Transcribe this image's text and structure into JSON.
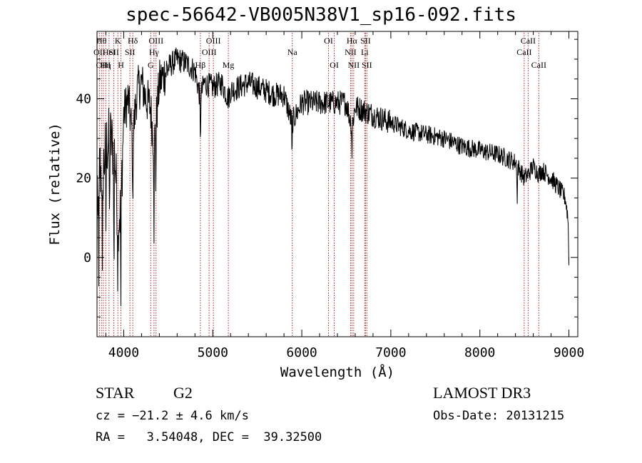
{
  "chart_data": {
    "type": "line",
    "title": "spec-56642-VB005N38V1_sp16-092.fits",
    "xlabel": "Wavelength (Å)",
    "ylabel": "Flux (relative)",
    "xlim": [
      3700,
      9100
    ],
    "ylim": [
      -20,
      57
    ],
    "x_ticks": [
      4000,
      5000,
      6000,
      7000,
      8000,
      9000
    ],
    "x_tick_labels": [
      "4000",
      "5000",
      "6000",
      "7000",
      "8000",
      "9000"
    ],
    "y_ticks": [
      0,
      20,
      40
    ],
    "y_tick_labels": [
      "0",
      "20",
      "40"
    ],
    "line_color": "#000000",
    "marker_color": "#b22222",
    "spectrum_anchors": [
      [
        3700,
        5
      ],
      [
        3720,
        24
      ],
      [
        3760,
        20
      ],
      [
        3800,
        28
      ],
      [
        3850,
        30
      ],
      [
        3900,
        26
      ],
      [
        3933,
        10
      ],
      [
        3968,
        12
      ],
      [
        4000,
        36
      ],
      [
        4050,
        40
      ],
      [
        4101,
        30
      ],
      [
        4150,
        42
      ],
      [
        4200,
        44
      ],
      [
        4250,
        40
      ],
      [
        4300,
        38
      ],
      [
        4340,
        28
      ],
      [
        4400,
        44
      ],
      [
        4500,
        48
      ],
      [
        4600,
        50
      ],
      [
        4700,
        49
      ],
      [
        4800,
        47
      ],
      [
        4861,
        40
      ],
      [
        4900,
        44
      ],
      [
        5000,
        43
      ],
      [
        5100,
        44
      ],
      [
        5175,
        40
      ],
      [
        5200,
        42
      ],
      [
        5300,
        43
      ],
      [
        5400,
        44
      ],
      [
        5500,
        43
      ],
      [
        5600,
        42
      ],
      [
        5700,
        41
      ],
      [
        5800,
        41
      ],
      [
        5890,
        34
      ],
      [
        6000,
        39
      ],
      [
        6100,
        39
      ],
      [
        6200,
        39
      ],
      [
        6300,
        39
      ],
      [
        6400,
        39
      ],
      [
        6500,
        39
      ],
      [
        6563,
        33
      ],
      [
        6600,
        38
      ],
      [
        6700,
        37
      ],
      [
        6800,
        36
      ],
      [
        6900,
        35
      ],
      [
        7000,
        34
      ],
      [
        7200,
        32
      ],
      [
        7400,
        31
      ],
      [
        7600,
        30
      ],
      [
        7800,
        28
      ],
      [
        8000,
        27
      ],
      [
        8200,
        26
      ],
      [
        8400,
        24
      ],
      [
        8498,
        20
      ],
      [
        8542,
        21
      ],
      [
        8600,
        23
      ],
      [
        8662,
        21
      ],
      [
        8700,
        22
      ],
      [
        8800,
        20
      ],
      [
        8900,
        17
      ],
      [
        8960,
        15
      ],
      [
        8990,
        10
      ],
      [
        9000,
        0
      ]
    ],
    "dips": [
      {
        "x": 3720,
        "depth": 35
      },
      {
        "x": 3760,
        "depth": 30
      },
      {
        "x": 3800,
        "depth": 20
      },
      {
        "x": 3840,
        "depth": 22
      },
      {
        "x": 3890,
        "depth": 38
      },
      {
        "x": 3933,
        "depth": 15
      },
      {
        "x": 3968,
        "depth": 25
      },
      {
        "x": 4101,
        "depth": 22
      },
      {
        "x": 4340,
        "depth": 20
      },
      {
        "x": 4361,
        "depth": 16
      },
      {
        "x": 4861,
        "depth": 14
      },
      {
        "x": 5890,
        "depth": 12
      },
      {
        "x": 6563,
        "depth": 8
      },
      {
        "x": 8420,
        "depth": 10
      }
    ],
    "line_markers": [
      {
        "wl": 3727,
        "label": "OII",
        "row": 2
      },
      {
        "wl": 3750,
        "label": "Hθ",
        "row": 1
      },
      {
        "wl": 3771,
        "label": "OIII",
        "row": 3
      },
      {
        "wl": 3798,
        "label": "Hη",
        "row": 3
      },
      {
        "wl": 3835,
        "label": "HeI",
        "row": 2
      },
      {
        "wl": 3889,
        "label": "SII",
        "row": 2
      },
      {
        "wl": 3934,
        "label": "K",
        "row": 1
      },
      {
        "wl": 3969,
        "label": "H",
        "row": 3
      },
      {
        "wl": 4070,
        "label": "SII",
        "row": 2
      },
      {
        "wl": 4102,
        "label": "Hδ",
        "row": 1
      },
      {
        "wl": 4304,
        "label": "G",
        "row": 3
      },
      {
        "wl": 4340,
        "label": "Hγ",
        "row": 2
      },
      {
        "wl": 4363,
        "label": "OIII",
        "row": 1
      },
      {
        "wl": 4861,
        "label": "Hβ",
        "row": 3
      },
      {
        "wl": 4959,
        "label": "OIII",
        "row": 2
      },
      {
        "wl": 5007,
        "label": "OIII",
        "row": 1
      },
      {
        "wl": 5175,
        "label": "Mg",
        "row": 3
      },
      {
        "wl": 5893,
        "label": "Na",
        "row": 2
      },
      {
        "wl": 6300,
        "label": "OI",
        "row": 1
      },
      {
        "wl": 6364,
        "label": "OI",
        "row": 3
      },
      {
        "wl": 6548,
        "label": "NII",
        "row": 2
      },
      {
        "wl": 6563,
        "label": "Hα",
        "row": 1
      },
      {
        "wl": 6583,
        "label": "NII",
        "row": 3
      },
      {
        "wl": 6707,
        "label": "Li",
        "row": 2
      },
      {
        "wl": 6716,
        "label": "SII",
        "row": 1
      },
      {
        "wl": 6731,
        "label": "SII",
        "row": 3
      },
      {
        "wl": 8498,
        "label": "CaII",
        "row": 2
      },
      {
        "wl": 8542,
        "label": "CaII",
        "row": 1
      },
      {
        "wl": 8662,
        "label": "CaII",
        "row": 3
      }
    ]
  },
  "info": {
    "object_class": "STAR",
    "subclass": "G2",
    "redshift": "cz = −21.2 ± 4.6 km/s",
    "coords": "RA =   3.54048, DEC =  39.32500",
    "survey": "LAMOST DR3",
    "obs_date": "Obs-Date: 20131215"
  }
}
